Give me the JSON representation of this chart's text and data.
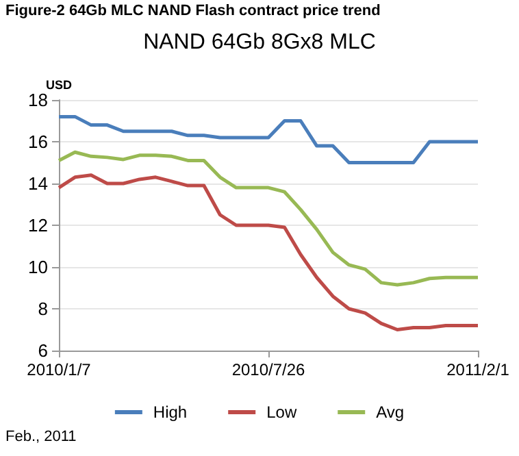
{
  "chart_data": {
    "type": "line",
    "title": "Figure-2 64Gb MLC NAND Flash contract price trend",
    "subtitle": "NAND 64Gb 8Gx8 MLC",
    "ylabel": "USD",
    "categories": [
      "2010/1/7",
      null,
      null,
      null,
      null,
      null,
      null,
      null,
      null,
      null,
      null,
      null,
      null,
      "2010/7/26",
      null,
      null,
      null,
      null,
      null,
      null,
      null,
      null,
      null,
      null,
      null,
      null,
      "2011/2/1"
    ],
    "series": [
      {
        "name": "High",
        "color": "#4a7ebb",
        "values": [
          17.2,
          17.2,
          16.8,
          16.8,
          16.5,
          16.5,
          16.5,
          16.5,
          16.3,
          16.3,
          16.2,
          16.2,
          16.2,
          16.2,
          17.0,
          17.0,
          15.8,
          15.8,
          15.0,
          15.0,
          15.0,
          15.0,
          15.0,
          16.0,
          16.0,
          16.0,
          16.0
        ]
      },
      {
        "name": "Low",
        "color": "#be4b48",
        "values": [
          13.8,
          14.3,
          14.4,
          14.0,
          14.0,
          14.2,
          14.3,
          14.1,
          13.9,
          13.9,
          12.5,
          12.0,
          12.0,
          12.0,
          11.9,
          10.6,
          9.5,
          8.6,
          8.0,
          7.8,
          7.3,
          7.0,
          7.1,
          7.1,
          7.2,
          7.2,
          7.2
        ]
      },
      {
        "name": "Avg",
        "color": "#98b954",
        "values": [
          15.1,
          15.5,
          15.3,
          15.25,
          15.15,
          15.35,
          15.35,
          15.3,
          15.1,
          15.1,
          14.3,
          13.8,
          13.8,
          13.8,
          13.6,
          12.75,
          11.8,
          10.7,
          10.1,
          9.9,
          9.25,
          9.15,
          9.25,
          9.45,
          9.5,
          9.5,
          9.5
        ]
      }
    ],
    "ylim": [
      6,
      18
    ],
    "yticks": [
      6,
      8,
      10,
      12,
      14,
      16,
      18
    ],
    "grid": "y",
    "legend": "bottom",
    "marker": "none",
    "line_style": "solid",
    "annotations": [
      "Feb., 2011"
    ]
  }
}
